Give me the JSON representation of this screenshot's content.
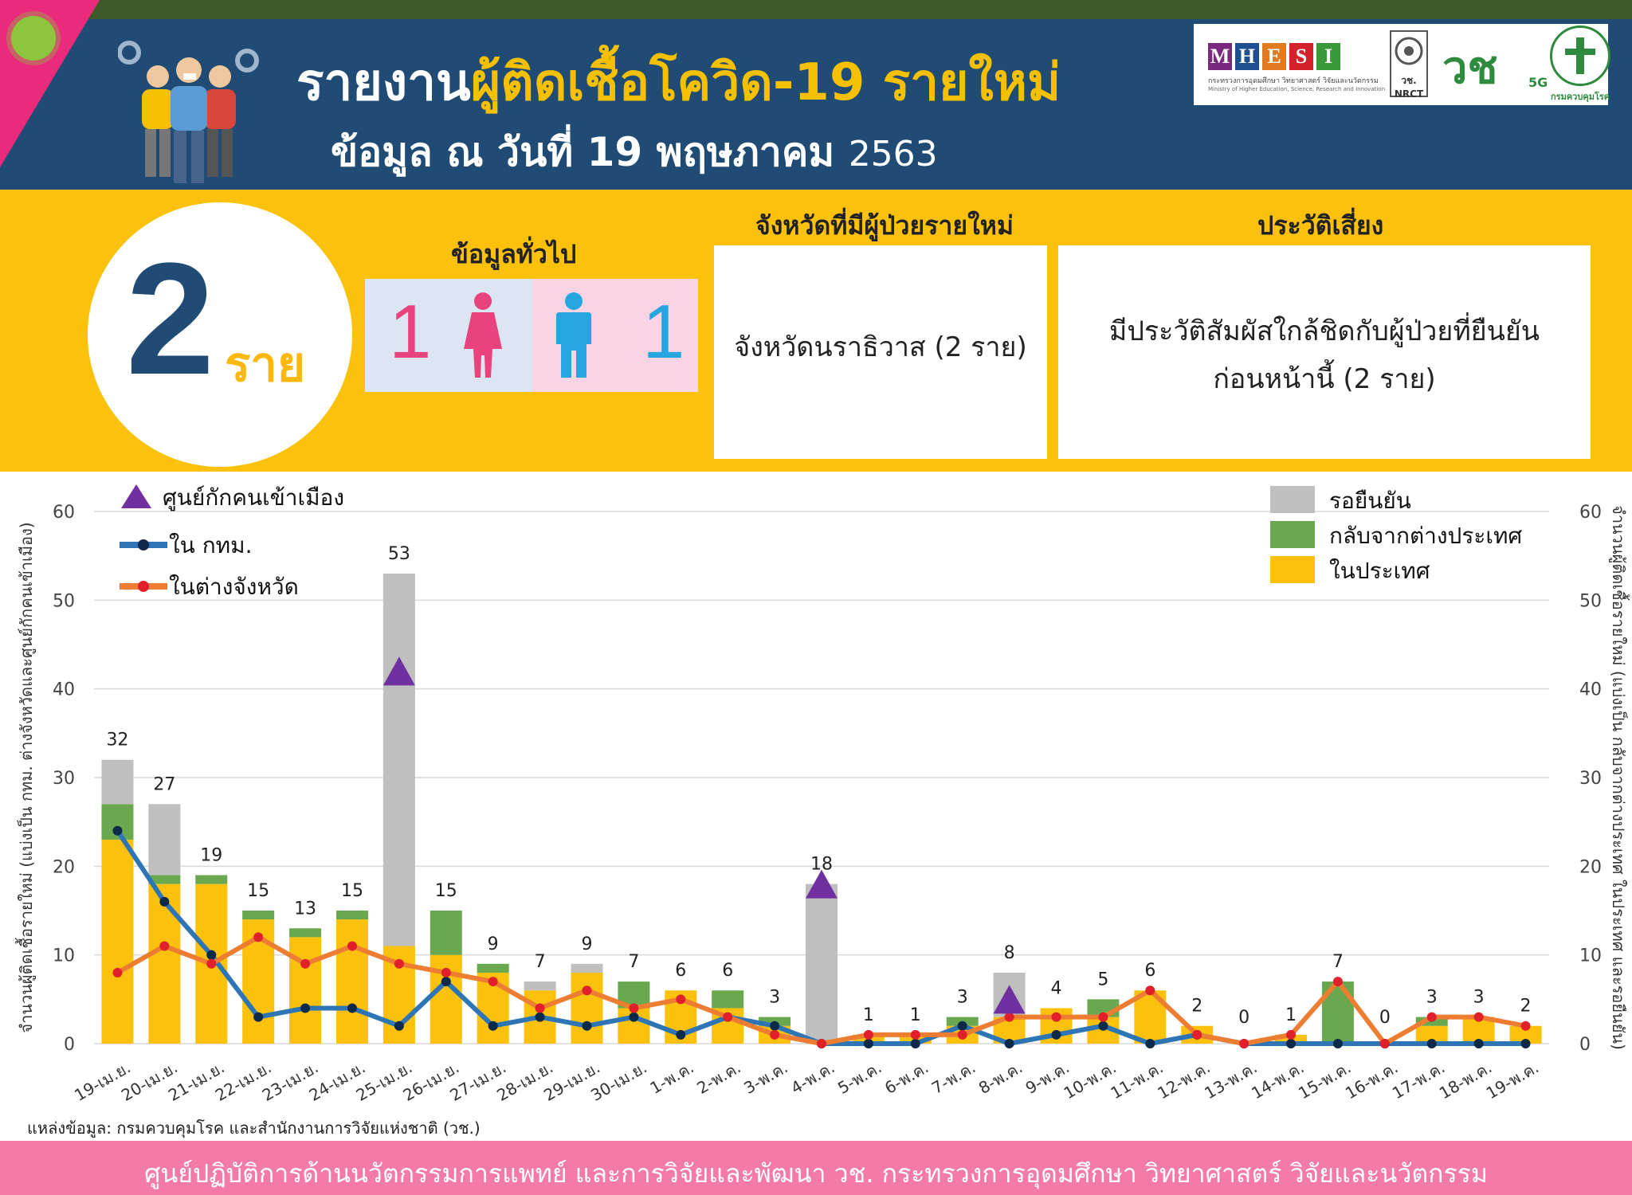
{
  "header": {
    "title_part1": "รายงาน",
    "title_highlight": "ผู้ติดเชื้อโควิด-19 รายใหม่",
    "subtitle": "ข้อมูล ณ วันที่ 19 พฤษภาคม",
    "subtitle_year": "2563",
    "logos": {
      "mhesi_letters": [
        "M",
        "H",
        "E",
        "S",
        "I"
      ],
      "mhesi_caption": "กระทรวงการอุดมศึกษา วิทยาศาสตร์ วิจัยและนวัตกรรม",
      "mhesi_caption_en": "Ministry of Higher Education, Science, Research and Innovation",
      "nrct": "วช. NRCT",
      "vor": "วช",
      "vor_tag": "5G",
      "moph_caption": "กรมควบคุมโรค"
    }
  },
  "summary": {
    "total_count": "2",
    "total_unit": "ราย",
    "general_title": "ข้อมูลทั่วไป",
    "female_count": "1",
    "male_count": "1",
    "province_title": "จังหวัดที่มีผู้ป่วยรายใหม่",
    "province_text": "จังหวัดนราธิวาส (2 ราย)",
    "risk_title": "ประวัติเสี่ยง",
    "risk_line1": "มีประวัติสัมผัสใกล้ชิดกับผู้ป่วยที่ยืนยัน",
    "risk_line2": "ก่อนหน้านี้ (2 ราย)"
  },
  "colors": {
    "navy": "#1f4b74",
    "yellow": "#fcc10c",
    "gray_bar": "#bfbfbf",
    "green_bar": "#6aa84f",
    "blue_line": "#2e75b6",
    "orange_line": "#ed7d31",
    "purple_marker": "#7030a0",
    "pink_footer": "#f47ba8"
  },
  "chart_data": {
    "type": "bar",
    "stacked": true,
    "categories": [
      "19-เม.ย.",
      "20-เม.ย.",
      "21-เม.ย.",
      "22-เม.ย.",
      "23-เม.ย.",
      "24-เม.ย.",
      "25-เม.ย.",
      "26-เม.ย.",
      "27-เม.ย.",
      "28-เม.ย.",
      "29-เม.ย.",
      "30-เม.ย.",
      "1-พ.ค.",
      "2-พ.ค.",
      "3-พ.ค.",
      "4-พ.ค.",
      "5-พ.ค.",
      "6-พ.ค.",
      "7-พ.ค.",
      "8-พ.ค.",
      "9-พ.ค.",
      "10-พ.ค.",
      "11-พ.ค.",
      "12-พ.ค.",
      "13-พ.ค.",
      "14-พ.ค.",
      "15-พ.ค.",
      "16-พ.ค.",
      "17-พ.ค.",
      "18-พ.ค.",
      "19-พ.ค."
    ],
    "series": [
      {
        "name": "ในประเทศ",
        "kind": "bar",
        "color": "#fcc10c",
        "values": [
          23,
          18,
          18,
          14,
          12,
          14,
          11,
          10,
          8,
          6,
          8,
          4,
          6,
          4,
          2,
          0,
          1,
          1,
          2,
          3,
          4,
          3,
          6,
          2,
          0,
          1,
          0,
          0,
          2,
          3,
          2
        ]
      },
      {
        "name": "กลับจากต่างประเทศ",
        "kind": "bar",
        "color": "#6aa84f",
        "values": [
          4,
          1,
          1,
          1,
          1,
          1,
          0,
          5,
          1,
          0,
          0,
          3,
          0,
          2,
          1,
          0,
          0,
          0,
          1,
          0,
          0,
          2,
          0,
          0,
          0,
          0,
          7,
          0,
          1,
          0,
          0
        ]
      },
      {
        "name": "รอยืนยัน",
        "kind": "bar",
        "color": "#bfbfbf",
        "values": [
          5,
          8,
          0,
          0,
          0,
          0,
          42,
          0,
          0,
          1,
          1,
          0,
          0,
          0,
          0,
          18,
          0,
          0,
          0,
          5,
          0,
          0,
          0,
          0,
          0,
          0,
          0,
          0,
          0,
          0,
          0
        ]
      },
      {
        "name": "ใน กทม.",
        "kind": "line",
        "color": "#2e75b6",
        "values": [
          24,
          16,
          10,
          3,
          4,
          4,
          2,
          7,
          2,
          3,
          2,
          3,
          1,
          3,
          2,
          0,
          0,
          0,
          2,
          0,
          1,
          2,
          0,
          1,
          0,
          0,
          0,
          0,
          0,
          0,
          0
        ]
      },
      {
        "name": "ในต่างจังหวัด",
        "kind": "line",
        "color": "#ed7d31",
        "values": [
          8,
          11,
          9,
          12,
          9,
          11,
          9,
          8,
          7,
          4,
          6,
          4,
          5,
          3,
          1,
          0,
          1,
          1,
          1,
          3,
          3,
          3,
          6,
          1,
          0,
          1,
          7,
          0,
          3,
          3,
          2
        ]
      },
      {
        "name": "ศูนย์กักคนเข้าเมือง",
        "kind": "marker",
        "color": "#7030a0",
        "points": [
          {
            "category": "25-เม.ย.",
            "value": 42
          },
          {
            "category": "4-พ.ค.",
            "value": 18
          },
          {
            "category": "8-พ.ค.",
            "value": 5
          }
        ]
      }
    ],
    "totals": [
      32,
      27,
      19,
      15,
      13,
      15,
      53,
      15,
      9,
      7,
      9,
      7,
      6,
      6,
      3,
      18,
      1,
      1,
      3,
      8,
      4,
      5,
      6,
      2,
      0,
      1,
      7,
      0,
      3,
      3,
      2
    ],
    "ylim": [
      0,
      60
    ],
    "yticks": [
      0,
      10,
      20,
      30,
      40,
      50,
      60
    ],
    "ylabel_left": "จำนวนผู้ติดเชื้อรายใหม่ (แบ่งเป็น กทม. ต่างจังหวัดและศูนย์กักคนเข้าเมือง)",
    "ylabel_right": "จำนวนผู้ติดเชื้อรายใหม่ (แบ่งเป็น กลับจากต่างประเทศ ในประเทศ และรอยืนยัน)",
    "legend_left": [
      "ศูนย์กักคนเข้าเมือง",
      "ใน กทม.",
      "ในต่างจังหวัด"
    ],
    "legend_right": [
      "รอยืนยัน",
      "กลับจากต่างประเทศ",
      "ในประเทศ"
    ],
    "grid": true
  },
  "footer": {
    "source": "แหล่งข้อมูล: กรมควบคุมโรค และสำนักงานการวิจัยแห่งชาติ (วช.)",
    "text": "ศูนย์ปฏิบัติการด้านนวัตกรรมการแพทย์ และการวิจัยและพัฒนา  วช.   กระทรวงการอุดมศึกษา วิทยาศาสตร์ วิจัยและนวัตกรรม"
  }
}
